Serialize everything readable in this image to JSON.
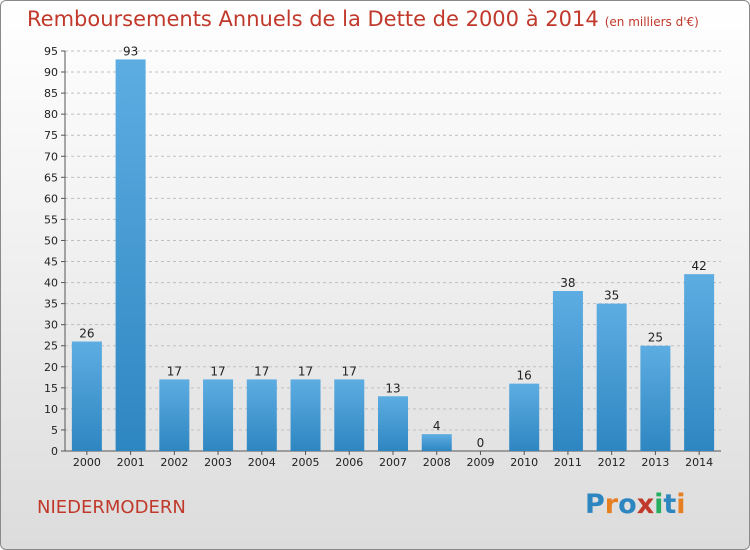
{
  "header": {
    "title": "Remboursements Annuels de la Dette de 2000 à 2014",
    "unit": "(en milliers d'€)"
  },
  "footer": {
    "place": "NIEDERMODERN",
    "logo_letters": [
      "P",
      "r",
      "o",
      "x",
      "i",
      "t",
      "i"
    ],
    "logo_colors": [
      "#2e86c1",
      "#e67e22",
      "#2e86c1",
      "#c0392b",
      "#27ae60",
      "#2e86c1",
      "#e67e22"
    ]
  },
  "colors": {
    "bar_top": "#5dade2",
    "bar_bottom": "#2e86c1",
    "grid": "#bfbfbf",
    "title": "#c0392b"
  },
  "chart_data": {
    "type": "bar",
    "title": "Remboursements Annuels de la Dette de 2000 à 2014",
    "categories": [
      "2000",
      "2001",
      "2002",
      "2003",
      "2004",
      "2005",
      "2006",
      "2007",
      "2008",
      "2009",
      "2010",
      "2011",
      "2012",
      "2013",
      "2014"
    ],
    "values": [
      26,
      93,
      17,
      17,
      17,
      17,
      17,
      13,
      4,
      0,
      16,
      38,
      35,
      25,
      42
    ],
    "ylim": [
      0,
      95
    ],
    "yticks": [
      0,
      5,
      10,
      15,
      20,
      25,
      30,
      35,
      40,
      45,
      50,
      55,
      60,
      65,
      70,
      75,
      80,
      85,
      90,
      95
    ],
    "grid": true
  }
}
